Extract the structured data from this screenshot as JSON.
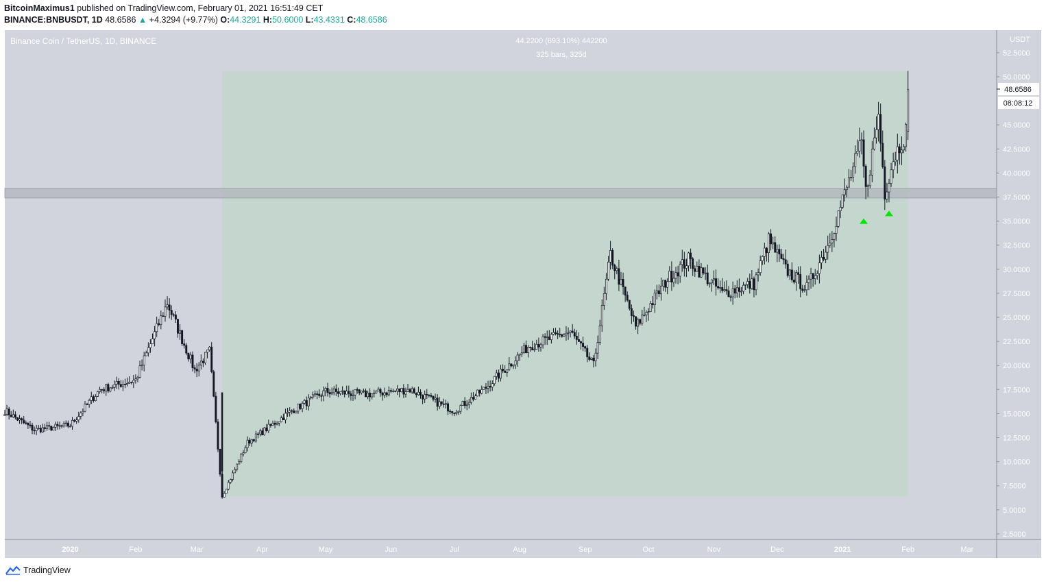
{
  "header": {
    "author": "BitcoinMaximus1",
    "published_text": "published on TradingView.com, February 01, 2021 16:51:49 CET",
    "symbol": "BINANCE:BNBUSDT, 1D",
    "last_price": "48.6586",
    "change": "+4.3294 (+9.77%)",
    "open_label": "O:",
    "open": "44.3291",
    "high_label": "H:",
    "high": "50.6000",
    "low_label": "L:",
    "low": "43.4331",
    "close_label": "C:",
    "close": "48.6586"
  },
  "chart_header": {
    "title": "Binance Coin / TetherUS, 1D, BINANCE",
    "measure_line1": "44.2200 (693.10%) 442200",
    "measure_line2": "325 bars, 325d"
  },
  "price_axis": {
    "unit": "USDT",
    "last_price_label": "48.6586",
    "countdown": "08:08:12"
  },
  "footer": {
    "brand": "TradingView"
  },
  "colors": {
    "background": "#d1d4dc",
    "measure_box": "#c4d6ce",
    "resistance_band": "#b2b5be",
    "candle": "#131722",
    "arrow": "#00e400"
  },
  "chart_data": {
    "type": "candlestick",
    "title": "Binance Coin / TetherUS, 1D, BINANCE",
    "ylabel": "USDT",
    "ylim": [
      1.5,
      54
    ],
    "yticks": [
      "52.5000",
      "50.0000",
      "45.0000",
      "42.5000",
      "40.0000",
      "37.5000",
      "35.0000",
      "32.5000",
      "30.0000",
      "27.5000",
      "25.0000",
      "22.5000",
      "20.0000",
      "17.5000",
      "15.0000",
      "12.5000",
      "10.0000",
      "7.5000",
      "5.0000",
      "2.5000"
    ],
    "xticks": [
      "2020",
      "Feb",
      "Mar",
      "Apr",
      "May",
      "Jun",
      "Jul",
      "Aug",
      "Sep",
      "Oct",
      "Nov",
      "Dec",
      "2021",
      "Feb",
      "Mar"
    ],
    "x_range": [
      "2019-12-01",
      "2021-03-15"
    ],
    "key_points": [
      {
        "date": "2019-12-01",
        "close": 15.3
      },
      {
        "date": "2019-12-15",
        "close": 13.3
      },
      {
        "date": "2020-01-01",
        "close": 13.8
      },
      {
        "date": "2020-01-15",
        "close": 17.5
      },
      {
        "date": "2020-02-01",
        "close": 18.5
      },
      {
        "date": "2020-02-16",
        "close": 26.5
      },
      {
        "date": "2020-02-29",
        "close": 19.5
      },
      {
        "date": "2020-03-07",
        "close": 21.5
      },
      {
        "date": "2020-03-13",
        "close": 6.4
      },
      {
        "date": "2020-03-25",
        "close": 12.0
      },
      {
        "date": "2020-04-15",
        "close": 15.3
      },
      {
        "date": "2020-05-01",
        "close": 17.3
      },
      {
        "date": "2020-05-20",
        "close": 17.0
      },
      {
        "date": "2020-06-10",
        "close": 17.5
      },
      {
        "date": "2020-07-01",
        "close": 15.3
      },
      {
        "date": "2020-07-15",
        "close": 17.5
      },
      {
        "date": "2020-08-05",
        "close": 22.0
      },
      {
        "date": "2020-08-25",
        "close": 23.5
      },
      {
        "date": "2020-09-05",
        "close": 20.0
      },
      {
        "date": "2020-09-13",
        "close": 31.5
      },
      {
        "date": "2020-09-25",
        "close": 24.0
      },
      {
        "date": "2020-10-10",
        "close": 29.0
      },
      {
        "date": "2020-10-20",
        "close": 31.0
      },
      {
        "date": "2020-11-05",
        "close": 27.5
      },
      {
        "date": "2020-11-20",
        "close": 28.5
      },
      {
        "date": "2020-11-27",
        "close": 33.0
      },
      {
        "date": "2020-12-05",
        "close": 30.0
      },
      {
        "date": "2020-12-15",
        "close": 28.0
      },
      {
        "date": "2020-12-25",
        "close": 32.5
      },
      {
        "date": "2021-01-03",
        "close": 38.5
      },
      {
        "date": "2021-01-10",
        "close": 43.0
      },
      {
        "date": "2021-01-12",
        "close": 38.0
      },
      {
        "date": "2021-01-18",
        "close": 46.0
      },
      {
        "date": "2021-01-21",
        "close": 38.0
      },
      {
        "date": "2021-01-25",
        "close": 41.5
      },
      {
        "date": "2021-01-31",
        "close": 44.3
      },
      {
        "date": "2021-02-01",
        "close": 48.6586
      }
    ],
    "measure_range": {
      "start_date": "2020-03-13",
      "end_date": "2021-02-01",
      "low": 6.4,
      "high": 50.6,
      "label": "44.2200 (693.10%) 442200",
      "bars_label": "325 bars, 325d"
    },
    "resistance_zone": [
      37.4,
      38.4
    ],
    "support_arrows": [
      {
        "date": "2021-01-11",
        "price": 35.0
      },
      {
        "date": "2021-01-23",
        "price": 35.8
      }
    ]
  }
}
